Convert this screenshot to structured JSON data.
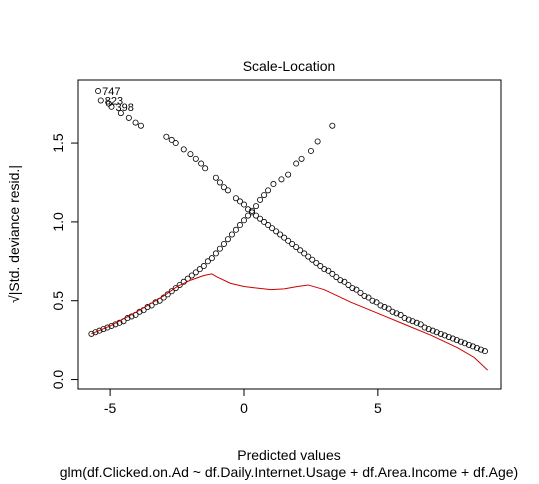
{
  "chart_data": {
    "type": "scatter",
    "title": "Scale-Location",
    "xlabel": "Predicted values",
    "subtitle": "glm(df.Clicked.on.Ad ~ df.Daily.Internet.Usage + df.Area.Income + df.Age)",
    "ylabel": "√|Std. deviance resid.|",
    "xlim": [
      -6.2,
      9.6
    ],
    "ylim": [
      -0.06,
      1.9
    ],
    "xticks": [
      "-5",
      "0",
      "5"
    ],
    "xtick_values": [
      -5,
      0,
      5
    ],
    "yticks": [
      "0.0",
      "0.5",
      "1.0",
      "1.5"
    ],
    "ytick_values": [
      0,
      0.5,
      1,
      1.5
    ],
    "point_color": "#000000",
    "smooth_color": "#cc0000",
    "outlier_labels": [
      {
        "label": "747",
        "x": -5.45,
        "y": 1.83
      },
      {
        "label": "823",
        "x": -5.35,
        "y": 1.77
      },
      {
        "label": "398",
        "x": -4.95,
        "y": 1.73
      }
    ],
    "descending_branch": [
      [
        -5.45,
        1.83
      ],
      [
        -5.35,
        1.77
      ],
      [
        -4.95,
        1.73
      ],
      [
        -5.05,
        1.75
      ],
      [
        -4.6,
        1.69
      ],
      [
        -4.3,
        1.66
      ],
      [
        -4.05,
        1.63
      ],
      [
        -3.85,
        1.61
      ],
      [
        -2.9,
        1.54
      ],
      [
        -2.7,
        1.52
      ],
      [
        -2.55,
        1.5
      ],
      [
        -2.25,
        1.46
      ],
      [
        -2.0,
        1.43
      ],
      [
        -1.8,
        1.4
      ],
      [
        -1.6,
        1.37
      ],
      [
        -1.45,
        1.34
      ],
      [
        -1.05,
        1.28
      ],
      [
        -0.9,
        1.25
      ],
      [
        -0.75,
        1.22
      ],
      [
        -0.6,
        1.2
      ],
      [
        -0.3,
        1.15
      ],
      [
        -0.15,
        1.13
      ],
      [
        0.0,
        1.11
      ],
      [
        0.15,
        1.08
      ],
      [
        0.3,
        1.06
      ],
      [
        0.45,
        1.04
      ],
      [
        0.6,
        1.02
      ],
      [
        0.75,
        1.0
      ],
      [
        0.9,
        0.98
      ],
      [
        1.05,
        0.96
      ],
      [
        1.2,
        0.94
      ],
      [
        1.35,
        0.92
      ],
      [
        1.5,
        0.9
      ],
      [
        1.65,
        0.88
      ],
      [
        1.8,
        0.86
      ],
      [
        1.95,
        0.84
      ],
      [
        2.1,
        0.82
      ],
      [
        2.25,
        0.8
      ],
      [
        2.4,
        0.78
      ],
      [
        2.55,
        0.76
      ],
      [
        2.7,
        0.74
      ],
      [
        2.85,
        0.72
      ],
      [
        3.0,
        0.7
      ],
      [
        3.15,
        0.69
      ],
      [
        3.3,
        0.67
      ],
      [
        3.45,
        0.65
      ],
      [
        3.6,
        0.63
      ],
      [
        3.75,
        0.62
      ],
      [
        3.9,
        0.6
      ],
      [
        4.05,
        0.58
      ],
      [
        4.2,
        0.57
      ],
      [
        4.35,
        0.55
      ],
      [
        4.5,
        0.53
      ],
      [
        4.65,
        0.52
      ],
      [
        4.8,
        0.5
      ],
      [
        4.95,
        0.49
      ],
      [
        5.1,
        0.47
      ],
      [
        5.25,
        0.46
      ],
      [
        5.4,
        0.45
      ],
      [
        5.55,
        0.43
      ],
      [
        5.7,
        0.42
      ],
      [
        5.85,
        0.41
      ],
      [
        6.0,
        0.39
      ],
      [
        6.15,
        0.38
      ],
      [
        6.3,
        0.37
      ],
      [
        6.45,
        0.36
      ],
      [
        6.6,
        0.35
      ],
      [
        6.75,
        0.33
      ],
      [
        6.9,
        0.32
      ],
      [
        7.05,
        0.31
      ],
      [
        7.2,
        0.3
      ],
      [
        7.35,
        0.29
      ],
      [
        7.5,
        0.28
      ],
      [
        7.65,
        0.27
      ],
      [
        7.8,
        0.26
      ],
      [
        7.95,
        0.25
      ],
      [
        8.1,
        0.24
      ],
      [
        8.25,
        0.23
      ],
      [
        8.4,
        0.22
      ],
      [
        8.55,
        0.21
      ],
      [
        8.7,
        0.2
      ],
      [
        8.85,
        0.19
      ],
      [
        9.0,
        0.18
      ]
    ],
    "ascending_branch": [
      [
        -5.7,
        0.29
      ],
      [
        -5.55,
        0.3
      ],
      [
        -5.4,
        0.31
      ],
      [
        -5.25,
        0.32
      ],
      [
        -5.1,
        0.33
      ],
      [
        -4.95,
        0.34
      ],
      [
        -4.8,
        0.35
      ],
      [
        -4.65,
        0.36
      ],
      [
        -4.5,
        0.37
      ],
      [
        -4.35,
        0.39
      ],
      [
        -4.2,
        0.4
      ],
      [
        -4.05,
        0.41
      ],
      [
        -3.9,
        0.43
      ],
      [
        -3.75,
        0.44
      ],
      [
        -3.6,
        0.46
      ],
      [
        -3.45,
        0.47
      ],
      [
        -3.3,
        0.49
      ],
      [
        -3.15,
        0.5
      ],
      [
        -3.0,
        0.52
      ],
      [
        -2.85,
        0.54
      ],
      [
        -2.7,
        0.56
      ],
      [
        -2.55,
        0.58
      ],
      [
        -2.4,
        0.6
      ],
      [
        -2.25,
        0.62
      ],
      [
        -2.1,
        0.64
      ],
      [
        -1.95,
        0.66
      ],
      [
        -1.8,
        0.68
      ],
      [
        -1.65,
        0.7
      ],
      [
        -1.5,
        0.72
      ],
      [
        -1.35,
        0.75
      ],
      [
        -1.2,
        0.77
      ],
      [
        -1.05,
        0.8
      ],
      [
        -0.9,
        0.83
      ],
      [
        -0.75,
        0.86
      ],
      [
        -0.6,
        0.89
      ],
      [
        -0.45,
        0.92
      ],
      [
        -0.3,
        0.95
      ],
      [
        -0.15,
        0.98
      ],
      [
        0.0,
        1.01
      ],
      [
        0.15,
        1.04
      ],
      [
        0.3,
        1.07
      ],
      [
        0.45,
        1.1
      ],
      [
        0.6,
        1.14
      ],
      [
        0.75,
        1.17
      ],
      [
        0.9,
        1.2
      ],
      [
        1.1,
        1.24
      ],
      [
        1.4,
        1.27
      ],
      [
        1.65,
        1.3
      ],
      [
        1.95,
        1.37
      ],
      [
        2.15,
        1.4
      ],
      [
        2.5,
        1.45
      ],
      [
        2.75,
        1.51
      ],
      [
        3.3,
        1.61
      ]
    ],
    "smooth_line": [
      [
        -5.7,
        0.29
      ],
      [
        -5.0,
        0.34
      ],
      [
        -4.0,
        0.43
      ],
      [
        -3.0,
        0.53
      ],
      [
        -2.5,
        0.59
      ],
      [
        -2.0,
        0.63
      ],
      [
        -1.5,
        0.66
      ],
      [
        -1.2,
        0.67
      ],
      [
        -1.0,
        0.65
      ],
      [
        -0.5,
        0.61
      ],
      [
        0.0,
        0.59
      ],
      [
        0.5,
        0.58
      ],
      [
        1.0,
        0.57
      ],
      [
        1.5,
        0.575
      ],
      [
        2.0,
        0.59
      ],
      [
        2.4,
        0.6
      ],
      [
        3.0,
        0.57
      ],
      [
        4.0,
        0.49
      ],
      [
        5.0,
        0.42
      ],
      [
        6.0,
        0.35
      ],
      [
        7.0,
        0.28
      ],
      [
        8.0,
        0.2
      ],
      [
        8.6,
        0.14
      ],
      [
        9.1,
        0.06
      ]
    ]
  }
}
